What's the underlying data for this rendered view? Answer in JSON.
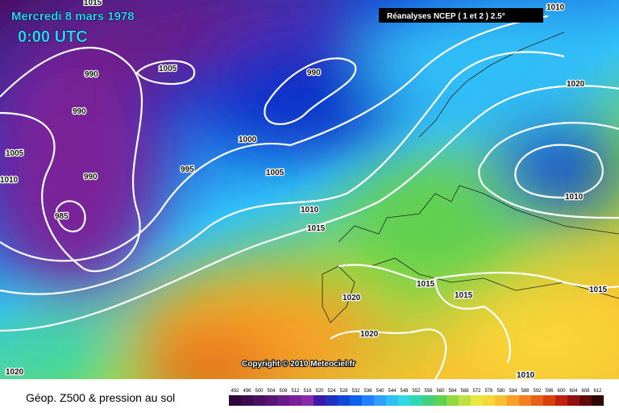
{
  "header": {
    "date": "Mercredi 8 mars 1978",
    "time": "0:00 UTC",
    "source": "Réanalyses NCEP ( 1 et 2 ) 2.5°"
  },
  "copyright": "Copyright © 2010 Meteociel.fr",
  "isobar_labels": [
    1015,
    1010,
    1005,
    990,
    990,
    1020,
    990,
    1005,
    1000,
    995,
    1005,
    990,
    1010,
    1010,
    1010,
    985,
    1015,
    1015,
    1015,
    1015,
    1020,
    1020,
    1010,
    1020
  ],
  "legend": {
    "title": "Géop. Z500 & pression au sol",
    "levels": [
      492,
      496,
      500,
      504,
      508,
      512,
      516,
      520,
      524,
      528,
      532,
      536,
      540,
      544,
      548,
      552,
      556,
      560,
      564,
      568,
      572,
      576,
      580,
      584,
      588,
      592,
      596,
      600,
      604,
      608,
      612
    ],
    "colors": [
      "#2a0838",
      "#3a0c4e",
      "#4a1062",
      "#5a1476",
      "#6a1a88",
      "#7a2098",
      "#8a2aa8",
      "#3a1aa8",
      "#2030c0",
      "#1048d8",
      "#1060f0",
      "#2080ff",
      "#30a0ff",
      "#30c0f8",
      "#30d8e0",
      "#30d8b0",
      "#40d080",
      "#60d050",
      "#90dc40",
      "#c0e040",
      "#e8e840",
      "#f8d838",
      "#f8c030",
      "#f8a028",
      "#f08020",
      "#e86018",
      "#d84010",
      "#c02010",
      "#901010",
      "#600808",
      "#300404"
    ]
  }
}
